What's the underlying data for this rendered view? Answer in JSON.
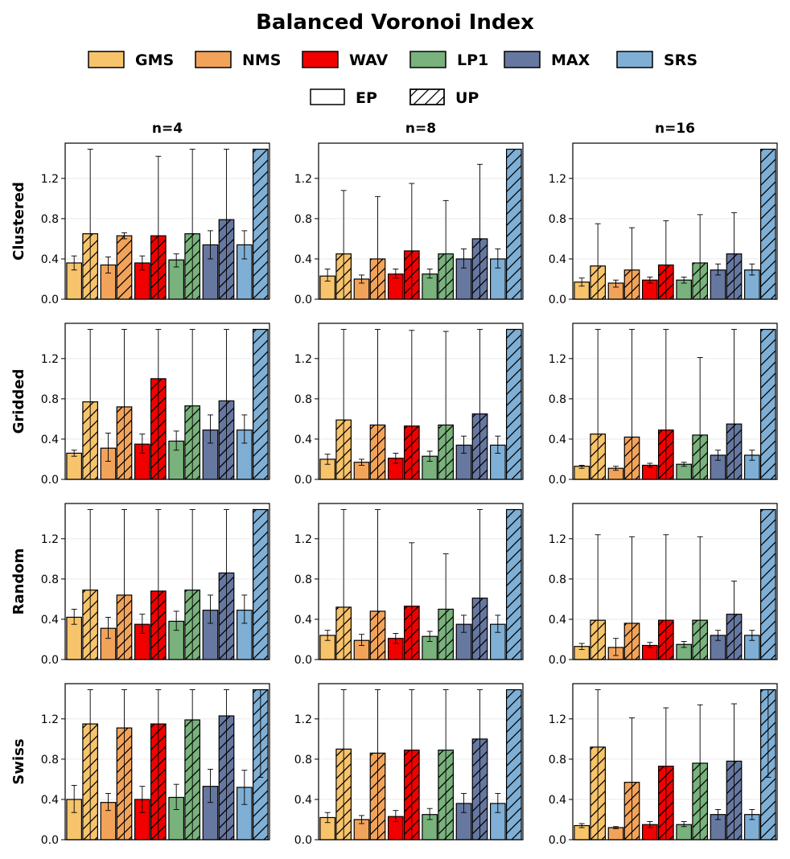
{
  "chart_data": {
    "type": "bar",
    "title": "Balanced Voronoi Index",
    "methods": [
      {
        "name": "GMS",
        "color": "#F7C46C"
      },
      {
        "name": "NMS",
        "color": "#F2A35A"
      },
      {
        "name": "WAV",
        "color": "#F20000"
      },
      {
        "name": "LP1",
        "color": "#79B27C"
      },
      {
        "name": "MAX",
        "color": "#6677A0"
      },
      {
        "name": "SRS",
        "color": "#7FAFD5"
      }
    ],
    "variants": [
      {
        "name": "EP",
        "hatch": false
      },
      {
        "name": "UP",
        "hatch": true
      }
    ],
    "column_titles": [
      "n=4",
      "n=8",
      "n=16"
    ],
    "row_labels": [
      "Clustered",
      "Gridded",
      "Random",
      "Swiss"
    ],
    "ylim": [
      0,
      1.55
    ],
    "yticks": [
      0.0,
      0.4,
      0.8,
      1.2
    ],
    "ytick_labels": [
      "0.0",
      "0.4",
      "0.8",
      "1.2"
    ],
    "grid": true,
    "panels": [
      [
        {
          "ep": [
            0.36,
            0.34,
            0.36,
            0.39,
            0.54,
            0.54
          ],
          "ep_err": [
            [
              0.29,
              0.43
            ],
            [
              0.26,
              0.42
            ],
            [
              0.29,
              0.43
            ],
            [
              0.32,
              0.45
            ],
            [
              0.4,
              0.68
            ],
            [
              0.4,
              0.68
            ]
          ],
          "up": [
            0.65,
            0.63,
            0.63,
            0.65,
            0.79,
            1.49
          ],
          "up_err": [
            [
              0.0,
              1.49
            ],
            [
              0.6,
              0.66
            ],
            [
              0.0,
              1.42
            ],
            [
              0.0,
              1.49
            ],
            [
              0.0,
              1.49
            ],
            [
              1.49,
              1.49
            ]
          ]
        },
        {
          "ep": [
            0.23,
            0.2,
            0.25,
            0.25,
            0.4,
            0.4
          ],
          "ep_err": [
            [
              0.18,
              0.3
            ],
            [
              0.16,
              0.24
            ],
            [
              0.21,
              0.3
            ],
            [
              0.21,
              0.3
            ],
            [
              0.31,
              0.5
            ],
            [
              0.31,
              0.5
            ]
          ],
          "up": [
            0.45,
            0.4,
            0.48,
            0.45,
            0.6,
            1.49
          ],
          "up_err": [
            [
              0.0,
              1.08
            ],
            [
              0.0,
              1.02
            ],
            [
              0.0,
              1.15
            ],
            [
              0.0,
              0.98
            ],
            [
              0.0,
              1.34
            ],
            [
              1.49,
              1.49
            ]
          ]
        },
        {
          "ep": [
            0.17,
            0.16,
            0.19,
            0.19,
            0.29,
            0.29
          ],
          "ep_err": [
            [
              0.13,
              0.21
            ],
            [
              0.12,
              0.19
            ],
            [
              0.16,
              0.22
            ],
            [
              0.16,
              0.22
            ],
            [
              0.24,
              0.35
            ],
            [
              0.24,
              0.35
            ]
          ],
          "up": [
            0.33,
            0.29,
            0.34,
            0.36,
            0.45,
            1.49
          ],
          "up_err": [
            [
              0.0,
              0.75
            ],
            [
              0.0,
              0.71
            ],
            [
              0.0,
              0.78
            ],
            [
              0.0,
              0.84
            ],
            [
              0.0,
              0.86
            ],
            [
              1.49,
              1.49
            ]
          ]
        }
      ],
      [
        {
          "ep": [
            0.26,
            0.31,
            0.35,
            0.38,
            0.49,
            0.49
          ],
          "ep_err": [
            [
              0.23,
              0.29
            ],
            [
              0.18,
              0.46
            ],
            [
              0.26,
              0.45
            ],
            [
              0.29,
              0.48
            ],
            [
              0.36,
              0.64
            ],
            [
              0.36,
              0.64
            ]
          ],
          "up": [
            0.77,
            0.72,
            1.0,
            0.73,
            0.78,
            1.49
          ],
          "up_err": [
            [
              0.0,
              1.49
            ],
            [
              0.0,
              1.49
            ],
            [
              0.0,
              1.49
            ],
            [
              0.0,
              1.49
            ],
            [
              0.0,
              1.49
            ],
            [
              1.49,
              1.49
            ]
          ]
        },
        {
          "ep": [
            0.2,
            0.17,
            0.21,
            0.23,
            0.34,
            0.34
          ],
          "ep_err": [
            [
              0.15,
              0.25
            ],
            [
              0.14,
              0.2
            ],
            [
              0.16,
              0.26
            ],
            [
              0.18,
              0.28
            ],
            [
              0.26,
              0.43
            ],
            [
              0.26,
              0.43
            ]
          ],
          "up": [
            0.59,
            0.54,
            0.53,
            0.54,
            0.65,
            1.49
          ],
          "up_err": [
            [
              0.0,
              1.49
            ],
            [
              0.0,
              1.49
            ],
            [
              0.0,
              1.48
            ],
            [
              0.0,
              1.47
            ],
            [
              0.0,
              1.49
            ],
            [
              1.49,
              1.49
            ]
          ]
        },
        {
          "ep": [
            0.13,
            0.11,
            0.14,
            0.15,
            0.24,
            0.24
          ],
          "ep_err": [
            [
              0.11,
              0.14
            ],
            [
              0.09,
              0.13
            ],
            [
              0.12,
              0.16
            ],
            [
              0.13,
              0.17
            ],
            [
              0.19,
              0.29
            ],
            [
              0.19,
              0.29
            ]
          ],
          "up": [
            0.45,
            0.42,
            0.49,
            0.44,
            0.55,
            1.49
          ],
          "up_err": [
            [
              0.0,
              1.49
            ],
            [
              0.0,
              1.49
            ],
            [
              0.0,
              1.49
            ],
            [
              0.0,
              1.21
            ],
            [
              0.0,
              1.49
            ],
            [
              1.49,
              1.49
            ]
          ]
        }
      ],
      [
        {
          "ep": [
            0.42,
            0.31,
            0.35,
            0.38,
            0.49,
            0.49
          ],
          "ep_err": [
            [
              0.35,
              0.5
            ],
            [
              0.21,
              0.42
            ],
            [
              0.26,
              0.45
            ],
            [
              0.29,
              0.48
            ],
            [
              0.36,
              0.64
            ],
            [
              0.36,
              0.64
            ]
          ],
          "up": [
            0.69,
            0.64,
            0.68,
            0.69,
            0.86,
            1.49
          ],
          "up_err": [
            [
              0.0,
              1.49
            ],
            [
              0.0,
              1.49
            ],
            [
              0.0,
              1.49
            ],
            [
              0.0,
              1.49
            ],
            [
              0.0,
              1.49
            ],
            [
              1.49,
              1.49
            ]
          ]
        },
        {
          "ep": [
            0.24,
            0.19,
            0.21,
            0.23,
            0.35,
            0.35
          ],
          "ep_err": [
            [
              0.19,
              0.29
            ],
            [
              0.14,
              0.25
            ],
            [
              0.16,
              0.26
            ],
            [
              0.18,
              0.28
            ],
            [
              0.27,
              0.44
            ],
            [
              0.27,
              0.44
            ]
          ],
          "up": [
            0.52,
            0.48,
            0.53,
            0.5,
            0.61,
            1.49
          ],
          "up_err": [
            [
              0.0,
              1.49
            ],
            [
              0.0,
              1.49
            ],
            [
              0.0,
              1.16
            ],
            [
              0.0,
              1.05
            ],
            [
              0.0,
              1.49
            ],
            [
              1.49,
              1.49
            ]
          ]
        },
        {
          "ep": [
            0.13,
            0.12,
            0.14,
            0.15,
            0.24,
            0.24
          ],
          "ep_err": [
            [
              0.1,
              0.16
            ],
            [
              0.04,
              0.21
            ],
            [
              0.12,
              0.17
            ],
            [
              0.12,
              0.18
            ],
            [
              0.19,
              0.29
            ],
            [
              0.19,
              0.29
            ]
          ],
          "up": [
            0.39,
            0.36,
            0.39,
            0.39,
            0.45,
            1.49
          ],
          "up_err": [
            [
              0.0,
              1.24
            ],
            [
              0.0,
              1.22
            ],
            [
              0.0,
              1.24
            ],
            [
              0.0,
              1.22
            ],
            [
              0.0,
              0.78
            ],
            [
              1.49,
              1.49
            ]
          ]
        }
      ],
      [
        {
          "ep": [
            0.4,
            0.37,
            0.4,
            0.42,
            0.53,
            0.52
          ],
          "ep_err": [
            [
              0.27,
              0.54
            ],
            [
              0.29,
              0.46
            ],
            [
              0.27,
              0.53
            ],
            [
              0.3,
              0.55
            ],
            [
              0.37,
              0.7
            ],
            [
              0.35,
              0.69
            ]
          ],
          "up": [
            1.15,
            1.11,
            1.15,
            1.19,
            1.23,
            1.49
          ],
          "up_err": [
            [
              0.0,
              1.49
            ],
            [
              0.0,
              1.49
            ],
            [
              0.0,
              1.49
            ],
            [
              0.0,
              1.49
            ],
            [
              0.0,
              1.49
            ],
            [
              0.62,
              1.49
            ]
          ]
        },
        {
          "ep": [
            0.22,
            0.2,
            0.23,
            0.25,
            0.36,
            0.36
          ],
          "ep_err": [
            [
              0.17,
              0.27
            ],
            [
              0.16,
              0.24
            ],
            [
              0.18,
              0.29
            ],
            [
              0.2,
              0.31
            ],
            [
              0.27,
              0.46
            ],
            [
              0.27,
              0.46
            ]
          ],
          "up": [
            0.9,
            0.86,
            0.89,
            0.89,
            1.0,
            1.49
          ],
          "up_err": [
            [
              0.0,
              1.49
            ],
            [
              0.0,
              1.49
            ],
            [
              0.0,
              1.49
            ],
            [
              0.0,
              1.49
            ],
            [
              0.0,
              1.49
            ],
            [
              1.49,
              1.49
            ]
          ]
        },
        {
          "ep": [
            0.14,
            0.12,
            0.15,
            0.15,
            0.25,
            0.25
          ],
          "ep_err": [
            [
              0.12,
              0.16
            ],
            [
              0.11,
              0.13
            ],
            [
              0.12,
              0.18
            ],
            [
              0.13,
              0.18
            ],
            [
              0.2,
              0.3
            ],
            [
              0.2,
              0.3
            ]
          ],
          "up": [
            0.92,
            0.57,
            0.73,
            0.76,
            0.78,
            1.49
          ],
          "up_err": [
            [
              0.0,
              1.49
            ],
            [
              0.0,
              1.21
            ],
            [
              0.0,
              1.31
            ],
            [
              0.0,
              1.34
            ],
            [
              0.0,
              1.35
            ],
            [
              0.62,
              1.49
            ]
          ]
        }
      ]
    ]
  }
}
